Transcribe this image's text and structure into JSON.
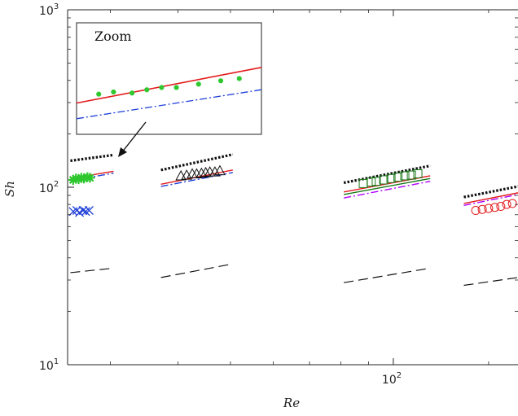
{
  "chart_data": {
    "type": "scatter",
    "title": "",
    "xlabel": "Re",
    "ylabel": "Sh",
    "xscale": "log",
    "yscale": "log",
    "xlim": [
      25,
      170
    ],
    "ylim": [
      10,
      1000
    ],
    "grid": false,
    "legend": "none",
    "y_ticks": [
      {
        "value": 10,
        "base": "10",
        "exp": "1"
      },
      {
        "value": 100,
        "base": "10",
        "exp": "2"
      },
      {
        "value": 1000,
        "base": "10",
        "exp": "3"
      }
    ],
    "x_ticks": [
      {
        "value": 100,
        "base": "10",
        "exp": "2"
      }
    ],
    "colors": {
      "black": "#111111",
      "red": "#e31a1c",
      "blue": "#1f3fd8",
      "magenta": "#b000ff",
      "green": "#2ec82e",
      "dark_green": "#1a7a1a"
    },
    "groups": [
      {
        "x_range": [
          25.3,
          30.4
        ],
        "lines": [
          {
            "style": "dotted",
            "color": "black",
            "y": [
              141,
              152
            ]
          },
          {
            "style": "solid",
            "color": "red",
            "y": [
              112,
              123
            ]
          },
          {
            "style": "dashdot",
            "color": "blue",
            "y": [
              109,
              120
            ]
          },
          {
            "style": "dashed",
            "color": "black",
            "y": [
              33,
              35
            ]
          }
        ],
        "markers": [
          {
            "symbol": "star",
            "color": "green",
            "points": [
              [
                25.6,
                110
              ],
              [
                25.9,
                112
              ],
              [
                26.2,
                111
              ],
              [
                26.5,
                113
              ],
              [
                26.8,
                112
              ],
              [
                27.2,
                114
              ],
              [
                27.5,
                113
              ]
            ]
          },
          {
            "symbol": "x",
            "color": "blue",
            "points": [
              [
                25.6,
                73
              ],
              [
                26.0,
                74
              ],
              [
                26.3,
                72
              ],
              [
                26.7,
                74
              ],
              [
                27.0,
                73
              ],
              [
                27.4,
                74
              ]
            ]
          }
        ]
      },
      {
        "x_range": [
          37.2,
          50.5
        ],
        "lines": [
          {
            "style": "dotted",
            "color": "black",
            "y": [
              125,
              153
            ]
          },
          {
            "style": "solid",
            "color": "red",
            "y": [
              104,
              125
            ]
          },
          {
            "style": "dashdot",
            "color": "blue",
            "y": [
              101,
              121
            ]
          },
          {
            "style": "dashed",
            "color": "black",
            "y": [
              31,
              37
            ]
          }
        ],
        "markers": [
          {
            "symbol": "triangle",
            "color": "black",
            "points": [
              [
                40.5,
                116
              ],
              [
                41.5,
                117
              ],
              [
                42.5,
                119
              ],
              [
                43.3,
                119
              ],
              [
                44.2,
                120
              ],
              [
                45.0,
                121
              ],
              [
                45.8,
                122
              ],
              [
                46.8,
                122
              ],
              [
                47.8,
                124
              ]
            ]
          }
        ]
      },
      {
        "x_range": [
          81,
          117
        ],
        "lines": [
          {
            "style": "dotted",
            "color": "black",
            "y": [
              106,
              132
            ]
          },
          {
            "style": "solid",
            "color": "red",
            "y": [
              94,
              116
            ]
          },
          {
            "style": "solid",
            "color": "dark_green",
            "y": [
              91,
              112
            ]
          },
          {
            "style": "dashdot",
            "color": "magenta",
            "y": [
              87,
              108
            ]
          },
          {
            "style": "dashed",
            "color": "black",
            "y": [
              29,
              35
            ]
          }
        ],
        "markers": [
          {
            "symbol": "square",
            "color": "dark_green",
            "points": [
              [
                88,
                105
              ],
              [
                91,
                107
              ],
              [
                93,
                108
              ],
              [
                96,
                110
              ],
              [
                99,
                112
              ],
              [
                102,
                114
              ],
              [
                105,
                116
              ],
              [
                108,
                117
              ],
              [
                111,
                119
              ]
            ]
          }
        ]
      },
      {
        "x_range": [
          135,
          172
        ],
        "lines": [
          {
            "style": "dotted",
            "color": "black",
            "y": [
              88,
              101
            ]
          },
          {
            "style": "solid",
            "color": "red",
            "y": [
              81,
              93
            ]
          },
          {
            "style": "dashdot",
            "color": "magenta",
            "y": [
              79,
              91
            ]
          },
          {
            "style": "dashed",
            "color": "black",
            "y": [
              28,
              31
            ]
          }
        ],
        "markers": [
          {
            "symbol": "circle",
            "color": "red",
            "points": [
              [
                142,
                74
              ],
              [
                146,
                75
              ],
              [
                150,
                76
              ],
              [
                154,
                77
              ],
              [
                158,
                78
              ],
              [
                162,
                80
              ],
              [
                166,
                81
              ],
              [
                170,
                82
              ]
            ]
          }
        ]
      }
    ],
    "inset": {
      "title": "Zoom",
      "lines": [
        {
          "style": "solid",
          "color": "red",
          "y0": 0.72,
          "y1": 0.4
        },
        {
          "style": "dashdot",
          "color": "blue",
          "y0": 0.86,
          "y1": 0.6
        }
      ],
      "markers": {
        "symbol": "star",
        "color": "green",
        "points": [
          [
            0.12,
            0.64
          ],
          [
            0.2,
            0.62
          ],
          [
            0.3,
            0.63
          ],
          [
            0.38,
            0.6
          ],
          [
            0.46,
            0.58
          ],
          [
            0.54,
            0.58
          ],
          [
            0.66,
            0.55
          ],
          [
            0.78,
            0.52
          ],
          [
            0.88,
            0.5
          ]
        ]
      }
    }
  }
}
